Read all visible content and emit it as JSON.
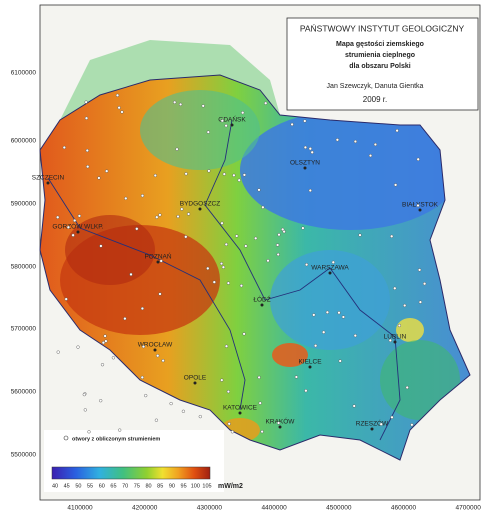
{
  "header": {
    "institute": "PAŃSTWOWY INSTYTUT GEOLOGICZNY",
    "title_lines": [
      "Mapa gęstości ziemskiego",
      "strumienia cieplnego",
      "dla obszaru Polski"
    ],
    "authors": "Jan Szewczyk, Danuta Gientka",
    "year": "2009 r."
  },
  "y_axis_labels": [
    "6100000",
    "6000000",
    "5900000",
    "5800000",
    "5700000",
    "5600000",
    "5500000"
  ],
  "x_axis_labels": [
    "4100000",
    "4200000",
    "4300000",
    "4400000",
    "4500000",
    "4600000",
    "4700000"
  ],
  "cities": [
    "GDAŃSK",
    "OLSZTYN",
    "SZCZECIN",
    "BYDGOSZCZ",
    "BIAŁYSTOK",
    "GORZÓW WLKP.",
    "POZNAŃ",
    "WARSZAWA",
    "ŁÓDŹ",
    "WROCŁAW",
    "LUBLIN",
    "KIELCE",
    "OPOLE",
    "KATOWICE",
    "KRAKÓW",
    "RZESZÓW"
  ],
  "legend": {
    "boreholes": "otwory z obliczonym strumieniem"
  },
  "colorbar": {
    "ticks": [
      "40",
      "45",
      "50",
      "55",
      "60",
      "65",
      "70",
      "75",
      "80",
      "85",
      "90",
      "95",
      "100",
      "105"
    ],
    "unit": "mW/m2"
  }
}
